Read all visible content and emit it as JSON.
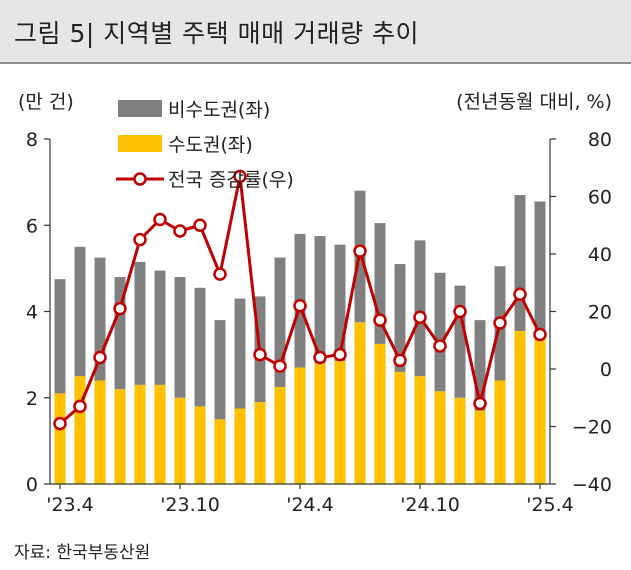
{
  "title": "그림 5| 지역별 주택 매매 거래량 추이",
  "source": "자료: 한국부동산원",
  "chart_data": {
    "type": "bar",
    "left_axis_label": "(만 건)",
    "right_axis_label": "(전년동월 대비, %)",
    "ylim_left": [
      0,
      8
    ],
    "yticks_left": [
      "0",
      "2",
      "4",
      "6",
      "8"
    ],
    "ylim_right": [
      -40,
      80
    ],
    "yticks_right": [
      "-40",
      "-20",
      "0",
      "20",
      "40",
      "60",
      "80"
    ],
    "x_tick_labels": [
      {
        "index": 0,
        "label": "'23.4"
      },
      {
        "index": 6,
        "label": "'23.10"
      },
      {
        "index": 12,
        "label": "'24.4"
      },
      {
        "index": 18,
        "label": "'24.10"
      },
      {
        "index": 24,
        "label": "'25.4"
      }
    ],
    "categories": [
      "'23.4",
      "'23.5",
      "'23.6",
      "'23.7",
      "'23.8",
      "'23.9",
      "'23.10",
      "'23.11",
      "'23.12",
      "'24.1",
      "'24.2",
      "'24.3",
      "'24.4",
      "'24.5",
      "'24.6",
      "'24.7",
      "'24.8",
      "'24.9",
      "'24.10",
      "'24.11",
      "'24.12",
      "'25.1",
      "'25.2",
      "'25.3",
      "'25.4"
    ],
    "series": [
      {
        "name": "수도권(좌)",
        "kind": "stacked-bar",
        "color": "#ffc000",
        "values": [
          2.1,
          2.5,
          2.4,
          2.2,
          2.3,
          2.3,
          2.0,
          1.8,
          1.5,
          1.75,
          1.9,
          2.25,
          2.7,
          2.8,
          2.85,
          3.75,
          3.25,
          2.6,
          2.5,
          2.15,
          2.0,
          1.7,
          2.4,
          3.55,
          3.4
        ]
      },
      {
        "name": "비수도권(좌)",
        "kind": "stacked-bar",
        "color": "#808080",
        "values": [
          2.65,
          3.0,
          2.85,
          2.6,
          2.85,
          2.65,
          2.8,
          2.75,
          2.3,
          2.55,
          2.45,
          3.0,
          3.1,
          2.95,
          2.7,
          3.05,
          2.8,
          2.5,
          3.15,
          2.75,
          2.6,
          2.1,
          2.65,
          3.15,
          3.15
        ]
      },
      {
        "name": "전국 증감률(우)",
        "kind": "line",
        "axis": "right",
        "color": "#c00000",
        "values": [
          -19,
          -13,
          4,
          21,
          45,
          52,
          48,
          50,
          33,
          67,
          5,
          1,
          22,
          4,
          5,
          41,
          17,
          3,
          18,
          8,
          20,
          -12,
          16,
          26,
          12
        ]
      }
    ]
  }
}
